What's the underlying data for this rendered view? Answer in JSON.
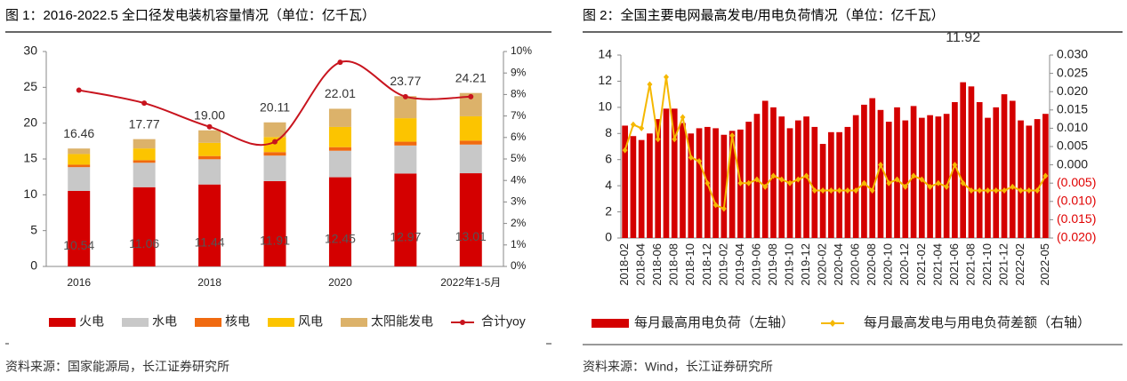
{
  "chart_data": [
    {
      "type": "bar",
      "stacked": true,
      "smooth_lines": true,
      "title": "图 1：2016-2022.5 全口径发电装机容量情况（单位：亿千瓦）",
      "categories": [
        "2016",
        null,
        "2018",
        null,
        "2020",
        null,
        "2022年1-5月"
      ],
      "series": [
        {
          "name": "火电",
          "color": "#d40000",
          "values": [
            10.54,
            11.06,
            11.44,
            11.91,
            12.45,
            12.97,
            13.01
          ],
          "data_labels": true
        },
        {
          "name": "水电",
          "color": "#c8c8c8",
          "values": [
            3.32,
            3.41,
            3.52,
            3.56,
            3.7,
            3.91,
            4.0
          ]
        },
        {
          "name": "核电",
          "color": "#f06a10",
          "values": [
            0.34,
            0.36,
            0.45,
            0.49,
            0.5,
            0.53,
            0.55
          ]
        },
        {
          "name": "风电",
          "color": "#fcc400",
          "values": [
            1.49,
            1.64,
            1.84,
            2.1,
            2.82,
            3.28,
            3.4
          ]
        },
        {
          "name": "太阳能发电",
          "color": "#dcb26a",
          "values": [
            0.77,
            1.3,
            1.75,
            2.05,
            2.54,
            3.08,
            3.25
          ]
        },
        {
          "name": "合计yoy",
          "type": "line",
          "axis": "y2",
          "color": "#c8141e",
          "values": [
            8.2,
            7.6,
            6.5,
            5.8,
            9.5,
            7.9,
            7.9
          ]
        }
      ],
      "totals": [
        16.46,
        17.77,
        19.0,
        20.11,
        22.01,
        23.77,
        24.21
      ],
      "total_labels": [
        "16.46",
        "17.77",
        "19.00",
        "20.11",
        "22.01",
        "23.77",
        "24.21"
      ],
      "ylim": [
        0,
        30
      ],
      "yticks": [
        0,
        5,
        10,
        15,
        20,
        25,
        30
      ],
      "y2lim": [
        0,
        10
      ],
      "y2ticks": [
        {
          "value": 0,
          "label": "0%"
        },
        {
          "value": 1,
          "label": "1%"
        },
        {
          "value": 2,
          "label": "2%"
        },
        {
          "value": 3,
          "label": "3%"
        },
        {
          "value": 4,
          "label": "4%"
        },
        {
          "value": 5,
          "label": "5%"
        },
        {
          "value": 6,
          "label": "6%"
        },
        {
          "value": 7,
          "label": "7%"
        },
        {
          "value": 8,
          "label": "8%"
        },
        {
          "value": 9,
          "label": "9%"
        },
        {
          "value": 10,
          "label": "10%"
        }
      ],
      "legend": "bottom",
      "source": "资料来源：国家能源局，长江证券研究所"
    },
    {
      "type": "bar",
      "stacked": false,
      "smooth_lines": false,
      "title": "图 2：全国主要电网最高发电/用电负荷情况（单位：亿千瓦）",
      "categories": [
        "2018-02",
        null,
        "2018-04",
        null,
        "2018-06",
        null,
        "2018-08",
        null,
        "2018-10",
        null,
        "2018-12",
        null,
        "2019-02",
        null,
        "2019-04",
        null,
        "2019-06",
        null,
        "2019-08",
        null,
        "2019-10",
        null,
        "2019-12",
        null,
        "2020-02",
        null,
        "2020-04",
        null,
        "2020-06",
        null,
        "2020-08",
        null,
        "2020-10",
        null,
        "2020-12",
        null,
        "2021-02",
        null,
        "2021-04",
        null,
        "2021-06",
        null,
        "2021-08",
        null,
        "2021-10",
        null,
        "2021-12",
        null,
        "2022-02",
        null,
        null,
        "2022-05"
      ],
      "series": [
        {
          "name": "每月最高用电负荷（左轴）",
          "color": "#d40000",
          "values": [
            8.6,
            7.8,
            7.5,
            8.0,
            9.1,
            9.9,
            9.9,
            8.8,
            8.0,
            8.4,
            8.5,
            8.4,
            7.9,
            8.2,
            8.3,
            8.9,
            9.5,
            10.5,
            10.0,
            9.3,
            8.4,
            9.0,
            9.3,
            8.5,
            7.2,
            8.1,
            8.1,
            8.5,
            9.4,
            10.2,
            10.7,
            9.8,
            8.9,
            10.0,
            9.0,
            10.1,
            9.2,
            9.4,
            9.3,
            9.5,
            10.4,
            11.92,
            11.6,
            10.4,
            9.2,
            10.0,
            11.0,
            10.5,
            9.0,
            8.6,
            9.1,
            9.5
          ],
          "value_labels": [
            null,
            null,
            null,
            null,
            null,
            null,
            null,
            null,
            null,
            null,
            null,
            null,
            null,
            null,
            null,
            null,
            null,
            null,
            null,
            null,
            null,
            null,
            null,
            null,
            null,
            null,
            null,
            null,
            null,
            null,
            null,
            null,
            null,
            null,
            null,
            null,
            null,
            null,
            null,
            null,
            null,
            "11.92",
            null,
            null,
            null,
            null,
            null,
            null,
            null,
            null,
            null,
            null
          ]
        },
        {
          "name": "每月最高发电与用电负荷差额（右轴）",
          "type": "line",
          "axis": "y2",
          "color": "#f5b800",
          "values": [
            0.004,
            0.011,
            0.01,
            0.022,
            0.007,
            0.024,
            0.007,
            0.013,
            0.002,
            0.001,
            -0.005,
            -0.011,
            -0.012,
            0.008,
            -0.005,
            -0.005,
            -0.004,
            -0.006,
            -0.003,
            -0.004,
            -0.005,
            -0.004,
            -0.003,
            -0.007,
            -0.007,
            -0.007,
            -0.007,
            -0.007,
            -0.007,
            -0.005,
            -0.007,
            0.0,
            -0.005,
            -0.004,
            -0.006,
            -0.003,
            -0.004,
            -0.006,
            -0.005,
            -0.006,
            0.0,
            -0.005,
            -0.007,
            -0.007,
            -0.007,
            -0.007,
            -0.007,
            -0.006,
            -0.007,
            -0.007,
            -0.007,
            -0.003
          ]
        }
      ],
      "ylim": [
        0,
        14
      ],
      "yticks": [
        0,
        2,
        4,
        6,
        8,
        10,
        12,
        14
      ],
      "y2lim": [
        -0.02,
        0.03
      ],
      "y2ticks": [
        {
          "value": -0.02,
          "label": "(0.020)"
        },
        {
          "value": -0.015,
          "label": "(0.015)"
        },
        {
          "value": -0.01,
          "label": "(0.010)"
        },
        {
          "value": -0.005,
          "label": "(0.005)"
        },
        {
          "value": 0,
          "label": "0.000"
        },
        {
          "value": 0.005,
          "label": "0.005"
        },
        {
          "value": 0.01,
          "label": "0.010"
        },
        {
          "value": 0.015,
          "label": "0.015"
        },
        {
          "value": 0.02,
          "label": "0.020"
        },
        {
          "value": 0.025,
          "label": "0.025"
        },
        {
          "value": 0.03,
          "label": "0.030"
        }
      ],
      "negative_tick_color": "#e00000",
      "legend": "bottom",
      "source": "资料来源：Wind，长江证券研究所"
    }
  ]
}
